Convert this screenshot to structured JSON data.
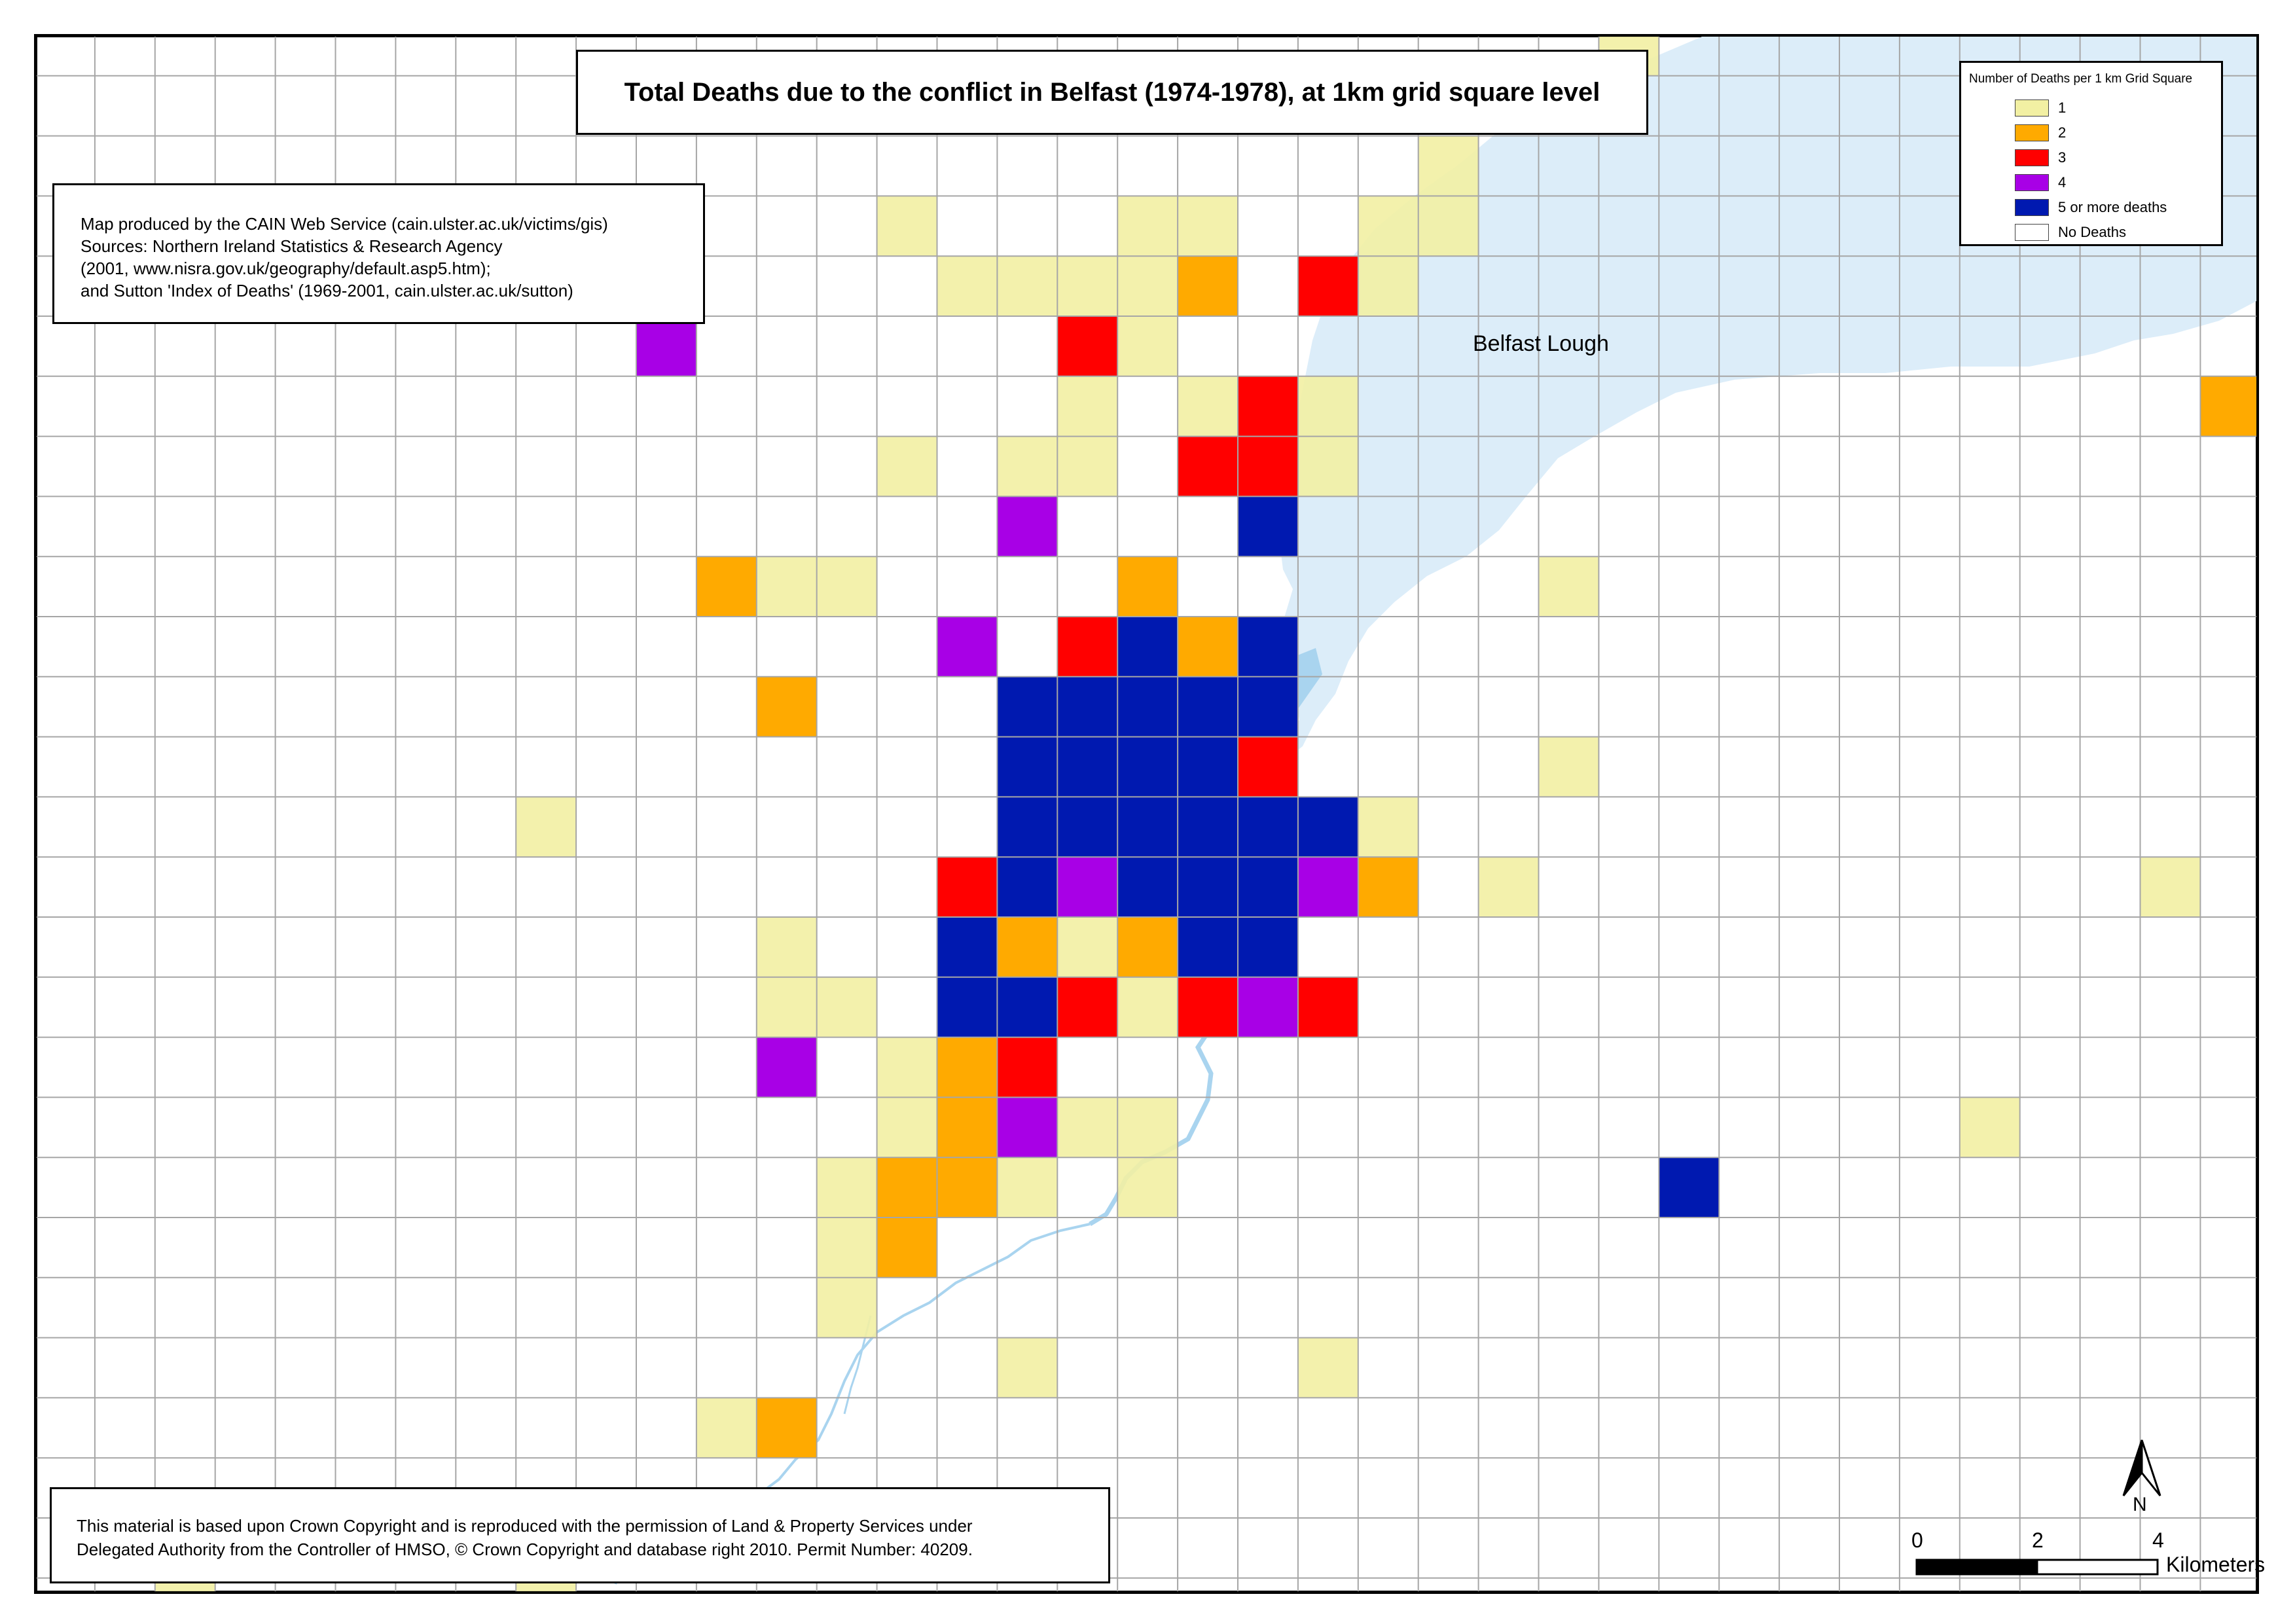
{
  "title": "Total Deaths due to the conflict in Belfast (1974-1978), at 1km grid square level",
  "credits": [
    "Map produced by the CAIN Web Service (cain.ulster.ac.uk/victims/gis)",
    "Sources: Northern Ireland Statistics & Research Agency",
    "(2001, www.nisra.gov.uk/geography/default.asp5.htm);",
    "and Sutton 'Index of Deaths' (1969-2001, cain.ulster.ac.uk/sutton)"
  ],
  "legend": {
    "title": "Number of Deaths per 1 km Grid Square",
    "items": [
      {
        "label": "1",
        "color": "#f2f0a3"
      },
      {
        "label": "2",
        "color": "#ffaa00"
      },
      {
        "label": "3",
        "color": "#ff0000"
      },
      {
        "label": "4",
        "color": "#a800e6"
      },
      {
        "label": "5 or more deaths",
        "color": "#0019b0"
      },
      {
        "label": "No Deaths",
        "color": "#ffffff"
      }
    ]
  },
  "water_label": "Belfast Lough",
  "copyright": [
    "This material is based upon Crown Copyright and is reproduced with the permission of Land & Property Services under",
    "Delegated Authority from the Controller of HMSO, © Crown Copyright and database right 2010. Permit Number: 40209."
  ],
  "north_label": "N",
  "scale": {
    "ticks": [
      "0",
      "2",
      "4"
    ],
    "unit": "Kilometers"
  },
  "colors": {
    "water": "#dcedf9",
    "river": "#a9d4ef",
    "grid": "#a6a6a6"
  },
  "grid_cells": [
    {
      "row": 0,
      "col": 26,
      "deaths": 1
    },
    {
      "row": 2,
      "col": 23,
      "deaths": 1
    },
    {
      "row": 3,
      "col": 14,
      "deaths": 1
    },
    {
      "row": 3,
      "col": 18,
      "deaths": 1
    },
    {
      "row": 3,
      "col": 19,
      "deaths": 1
    },
    {
      "row": 3,
      "col": 22,
      "deaths": 1
    },
    {
      "row": 3,
      "col": 23,
      "deaths": 1
    },
    {
      "row": 4,
      "col": 15,
      "deaths": 1
    },
    {
      "row": 4,
      "col": 16,
      "deaths": 1
    },
    {
      "row": 4,
      "col": 17,
      "deaths": 1
    },
    {
      "row": 4,
      "col": 18,
      "deaths": 1
    },
    {
      "row": 4,
      "col": 19,
      "deaths": 2
    },
    {
      "row": 4,
      "col": 21,
      "deaths": 3
    },
    {
      "row": 4,
      "col": 22,
      "deaths": 1
    },
    {
      "row": 5,
      "col": 10,
      "deaths": 4
    },
    {
      "row": 5,
      "col": 17,
      "deaths": 3
    },
    {
      "row": 5,
      "col": 18,
      "deaths": 1
    },
    {
      "row": 6,
      "col": 17,
      "deaths": 1
    },
    {
      "row": 6,
      "col": 19,
      "deaths": 1
    },
    {
      "row": 6,
      "col": 20,
      "deaths": 3
    },
    {
      "row": 6,
      "col": 21,
      "deaths": 1
    },
    {
      "row": 6,
      "col": 36,
      "deaths": 2
    },
    {
      "row": 7,
      "col": 14,
      "deaths": 1
    },
    {
      "row": 7,
      "col": 16,
      "deaths": 1
    },
    {
      "row": 7,
      "col": 17,
      "deaths": 1
    },
    {
      "row": 7,
      "col": 19,
      "deaths": 3
    },
    {
      "row": 7,
      "col": 20,
      "deaths": 3
    },
    {
      "row": 7,
      "col": 21,
      "deaths": 1
    },
    {
      "row": 8,
      "col": 16,
      "deaths": 4
    },
    {
      "row": 8,
      "col": 20,
      "deaths": 5
    },
    {
      "row": 9,
      "col": 11,
      "deaths": 2
    },
    {
      "row": 9,
      "col": 12,
      "deaths": 1
    },
    {
      "row": 9,
      "col": 13,
      "deaths": 1
    },
    {
      "row": 9,
      "col": 18,
      "deaths": 2
    },
    {
      "row": 9,
      "col": 25,
      "deaths": 1
    },
    {
      "row": 10,
      "col": 15,
      "deaths": 4
    },
    {
      "row": 10,
      "col": 17,
      "deaths": 3
    },
    {
      "row": 10,
      "col": 18,
      "deaths": 5
    },
    {
      "row": 10,
      "col": 19,
      "deaths": 2
    },
    {
      "row": 10,
      "col": 20,
      "deaths": 5
    },
    {
      "row": 11,
      "col": 12,
      "deaths": 2
    },
    {
      "row": 11,
      "col": 16,
      "deaths": 5
    },
    {
      "row": 11,
      "col": 17,
      "deaths": 5
    },
    {
      "row": 11,
      "col": 18,
      "deaths": 5
    },
    {
      "row": 11,
      "col": 19,
      "deaths": 5
    },
    {
      "row": 11,
      "col": 20,
      "deaths": 5
    },
    {
      "row": 12,
      "col": 16,
      "deaths": 5
    },
    {
      "row": 12,
      "col": 17,
      "deaths": 5
    },
    {
      "row": 12,
      "col": 18,
      "deaths": 5
    },
    {
      "row": 12,
      "col": 19,
      "deaths": 5
    },
    {
      "row": 12,
      "col": 20,
      "deaths": 3
    },
    {
      "row": 12,
      "col": 25,
      "deaths": 1
    },
    {
      "row": 13,
      "col": 8,
      "deaths": 1
    },
    {
      "row": 13,
      "col": 16,
      "deaths": 5
    },
    {
      "row": 13,
      "col": 17,
      "deaths": 5
    },
    {
      "row": 13,
      "col": 18,
      "deaths": 5
    },
    {
      "row": 13,
      "col": 19,
      "deaths": 5
    },
    {
      "row": 13,
      "col": 20,
      "deaths": 5
    },
    {
      "row": 13,
      "col": 21,
      "deaths": 5
    },
    {
      "row": 13,
      "col": 22,
      "deaths": 1
    },
    {
      "row": 14,
      "col": 15,
      "deaths": 3
    },
    {
      "row": 14,
      "col": 16,
      "deaths": 5
    },
    {
      "row": 14,
      "col": 17,
      "deaths": 4
    },
    {
      "row": 14,
      "col": 18,
      "deaths": 5
    },
    {
      "row": 14,
      "col": 19,
      "deaths": 5
    },
    {
      "row": 14,
      "col": 20,
      "deaths": 5
    },
    {
      "row": 14,
      "col": 21,
      "deaths": 4
    },
    {
      "row": 14,
      "col": 22,
      "deaths": 2
    },
    {
      "row": 14,
      "col": 24,
      "deaths": 1
    },
    {
      "row": 14,
      "col": 35,
      "deaths": 1
    },
    {
      "row": 15,
      "col": 12,
      "deaths": 1
    },
    {
      "row": 15,
      "col": 15,
      "deaths": 5
    },
    {
      "row": 15,
      "col": 16,
      "deaths": 2
    },
    {
      "row": 15,
      "col": 17,
      "deaths": 1
    },
    {
      "row": 15,
      "col": 18,
      "deaths": 2
    },
    {
      "row": 15,
      "col": 19,
      "deaths": 5
    },
    {
      "row": 15,
      "col": 20,
      "deaths": 5
    },
    {
      "row": 16,
      "col": 12,
      "deaths": 1
    },
    {
      "row": 16,
      "col": 13,
      "deaths": 1
    },
    {
      "row": 16,
      "col": 15,
      "deaths": 5
    },
    {
      "row": 16,
      "col": 16,
      "deaths": 5
    },
    {
      "row": 16,
      "col": 17,
      "deaths": 3
    },
    {
      "row": 16,
      "col": 18,
      "deaths": 1
    },
    {
      "row": 16,
      "col": 19,
      "deaths": 3
    },
    {
      "row": 16,
      "col": 20,
      "deaths": 4
    },
    {
      "row": 16,
      "col": 21,
      "deaths": 3
    },
    {
      "row": 17,
      "col": 12,
      "deaths": 4
    },
    {
      "row": 17,
      "col": 14,
      "deaths": 1
    },
    {
      "row": 17,
      "col": 15,
      "deaths": 2
    },
    {
      "row": 17,
      "col": 16,
      "deaths": 3
    },
    {
      "row": 18,
      "col": 14,
      "deaths": 1
    },
    {
      "row": 18,
      "col": 15,
      "deaths": 2
    },
    {
      "row": 18,
      "col": 16,
      "deaths": 4
    },
    {
      "row": 18,
      "col": 17,
      "deaths": 1
    },
    {
      "row": 18,
      "col": 18,
      "deaths": 1
    },
    {
      "row": 18,
      "col": 32,
      "deaths": 1
    },
    {
      "row": 19,
      "col": 13,
      "deaths": 1
    },
    {
      "row": 19,
      "col": 14,
      "deaths": 2
    },
    {
      "row": 19,
      "col": 15,
      "deaths": 2
    },
    {
      "row": 19,
      "col": 16,
      "deaths": 1
    },
    {
      "row": 19,
      "col": 18,
      "deaths": 1
    },
    {
      "row": 19,
      "col": 27,
      "deaths": 5
    },
    {
      "row": 20,
      "col": 13,
      "deaths": 1
    },
    {
      "row": 20,
      "col": 14,
      "deaths": 2
    },
    {
      "row": 21,
      "col": 13,
      "deaths": 1
    },
    {
      "row": 22,
      "col": 16,
      "deaths": 1
    },
    {
      "row": 22,
      "col": 21,
      "deaths": 1
    },
    {
      "row": 23,
      "col": 11,
      "deaths": 1
    },
    {
      "row": 23,
      "col": 12,
      "deaths": 2
    },
    {
      "row": 26,
      "col": 2,
      "deaths": 1
    },
    {
      "row": 26,
      "col": 8,
      "deaths": 1
    }
  ]
}
